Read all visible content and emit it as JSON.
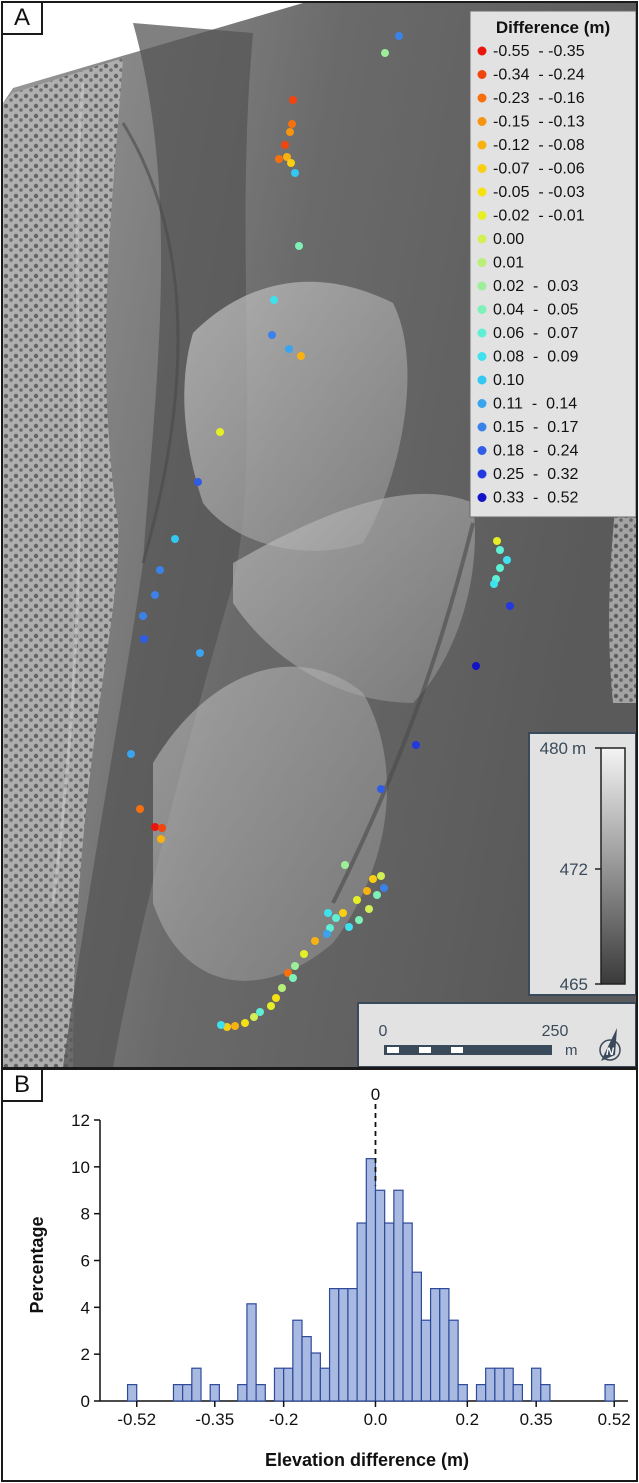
{
  "panel_a": {
    "label": "A",
    "legend": {
      "title": "Difference (m)",
      "items": [
        {
          "label": "-0.55  - -0.35",
          "color": "#e8160d"
        },
        {
          "label": "-0.34  - -0.24",
          "color": "#f2450e"
        },
        {
          "label": "-0.23  - -0.16",
          "color": "#f6700f"
        },
        {
          "label": "-0.15  - -0.13",
          "color": "#f79410"
        },
        {
          "label": "-0.12  - -0.08",
          "color": "#f8b210"
        },
        {
          "label": "-0.07  - -0.06",
          "color": "#fbcf11"
        },
        {
          "label": "-0.05  - -0.03",
          "color": "#f5e012"
        },
        {
          "label": "-0.02  - -0.01",
          "color": "#e6ef26"
        },
        {
          "label": "0.00",
          "color": "#d2f055"
        },
        {
          "label": "0.01",
          "color": "#b8ef78"
        },
        {
          "label": "0.02  -  0.03",
          "color": "#9cef98"
        },
        {
          "label": "0.04  -  0.05",
          "color": "#7ef0b8"
        },
        {
          "label": "0.06  -  0.07",
          "color": "#5eefd4"
        },
        {
          "label": "0.08  -  0.09",
          "color": "#3fe1ee"
        },
        {
          "label": "0.10",
          "color": "#33c8f2"
        },
        {
          "label": "0.11  -  0.14",
          "color": "#3aa4ee"
        },
        {
          "label": "0.15  -  0.17",
          "color": "#3a82ea"
        },
        {
          "label": "0.18  -  0.24",
          "color": "#2f5de6"
        },
        {
          "label": "0.25  -  0.32",
          "color": "#2239e2"
        },
        {
          "label": "0.33  -  0.52",
          "color": "#1212c8"
        }
      ]
    },
    "elevation_bar": {
      "max_label": "480",
      "max_unit": "m",
      "mid_label": "472",
      "min_label": "465"
    },
    "scale_bar": {
      "start_label": "0",
      "end_label": "250",
      "unit": "m"
    },
    "north_label": "N"
  },
  "chart_data": {
    "type": "bar",
    "panel_label": "B",
    "xlabel": "Elevation difference (m)",
    "ylabel": "Percentage",
    "ylim": [
      0,
      12
    ],
    "yticks": [
      0,
      2,
      4,
      6,
      8,
      10,
      12
    ],
    "xlim": [
      -0.6,
      0.55
    ],
    "xticks": [
      {
        "value": -0.52,
        "label": "-0.52"
      },
      {
        "value": -0.35,
        "label": "-0.35"
      },
      {
        "value": -0.2,
        "label": "-0.2"
      },
      {
        "value": 0.0,
        "label": "0.0"
      },
      {
        "value": 0.2,
        "label": "0.2"
      },
      {
        "value": 0.35,
        "label": "0.35"
      },
      {
        "value": 0.52,
        "label": "0.52"
      }
    ],
    "zero_line": {
      "value": 0,
      "label": "0"
    },
    "bin_width": 0.02,
    "bins": [
      {
        "x": -0.53,
        "value": 0.7
      },
      {
        "x": -0.43,
        "value": 0.7
      },
      {
        "x": -0.41,
        "value": 0.7
      },
      {
        "x": -0.39,
        "value": 1.4
      },
      {
        "x": -0.35,
        "value": 0.7
      },
      {
        "x": -0.29,
        "value": 0.7
      },
      {
        "x": -0.27,
        "value": 4.15
      },
      {
        "x": -0.25,
        "value": 0.7
      },
      {
        "x": -0.21,
        "value": 1.4
      },
      {
        "x": -0.19,
        "value": 1.4
      },
      {
        "x": -0.17,
        "value": 3.45
      },
      {
        "x": -0.15,
        "value": 2.75
      },
      {
        "x": -0.13,
        "value": 2.05
      },
      {
        "x": -0.11,
        "value": 1.4
      },
      {
        "x": -0.09,
        "value": 4.8
      },
      {
        "x": -0.07,
        "value": 4.8
      },
      {
        "x": -0.05,
        "value": 4.8
      },
      {
        "x": -0.03,
        "value": 7.6
      },
      {
        "x": -0.01,
        "value": 10.35
      },
      {
        "x": 0.01,
        "value": 9.0
      },
      {
        "x": 0.03,
        "value": 7.6
      },
      {
        "x": 0.05,
        "value": 9.0
      },
      {
        "x": 0.07,
        "value": 7.6
      },
      {
        "x": 0.09,
        "value": 5.5
      },
      {
        "x": 0.11,
        "value": 3.45
      },
      {
        "x": 0.13,
        "value": 4.8
      },
      {
        "x": 0.15,
        "value": 4.8
      },
      {
        "x": 0.17,
        "value": 3.45
      },
      {
        "x": 0.19,
        "value": 0.7
      },
      {
        "x": 0.23,
        "value": 0.7
      },
      {
        "x": 0.25,
        "value": 1.4
      },
      {
        "x": 0.27,
        "value": 1.4
      },
      {
        "x": 0.29,
        "value": 1.4
      },
      {
        "x": 0.31,
        "value": 0.7
      },
      {
        "x": 0.35,
        "value": 1.4
      },
      {
        "x": 0.37,
        "value": 0.7
      },
      {
        "x": 0.51,
        "value": 0.7
      }
    ],
    "bar_color": "#a8b9e2",
    "bar_edge": "#2e4a9a"
  }
}
